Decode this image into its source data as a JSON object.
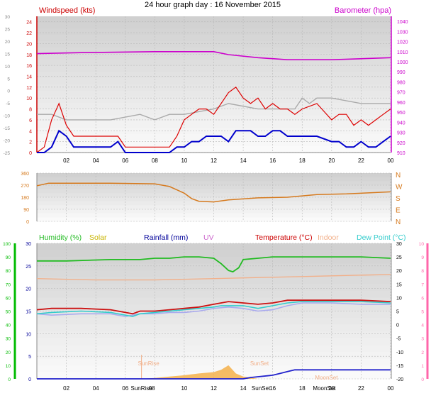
{
  "title": "24 hour graph day : 16 November 2015",
  "colors": {
    "wind": "#dd0000",
    "gust_grey": "#aaaaaa",
    "baro": "#cc00cc",
    "dir": "#d67a1e",
    "humidity": "#22bb22",
    "solar": "#c8b400",
    "rain": "#000099",
    "uv": "#cc66cc",
    "temp": "#cc1111",
    "indoor": "#f2b08a",
    "dew": "#33cccc",
    "apparent": "#aaaaee",
    "axis_green": "#00bb00",
    "axis_pink": "#ff66aa"
  },
  "chart_data": [
    {
      "type": "line",
      "name": "wind-panel",
      "left_label": "Windspeed (kts)",
      "right_label": "Barometer (hpa)",
      "x_ticks": [
        "02",
        "04",
        "06",
        "08",
        "10",
        "12",
        "14",
        "16",
        "18",
        "20",
        "22",
        "00"
      ],
      "x_range": [
        0,
        24
      ],
      "y_left_outer_ticks": [
        "30",
        "25",
        "20",
        "15",
        "10",
        "5",
        "0",
        "-5",
        "-10",
        "-15",
        "-20",
        "-25"
      ],
      "y_left_ticks": [
        "24",
        "22",
        "20",
        "18",
        "16",
        "14",
        "12",
        "10",
        "8",
        "6",
        "4",
        "2",
        "0"
      ],
      "y_left_range": [
        0,
        25
      ],
      "y_right_ticks": [
        "1040",
        "1030",
        "1020",
        "1010",
        "1000",
        "990",
        "980",
        "970",
        "960",
        "950",
        "940",
        "930",
        "920",
        "910"
      ],
      "y_right_range": [
        910,
        1045
      ],
      "barometer": {
        "x": [
          0,
          3,
          8,
          12,
          13,
          15,
          16,
          17,
          20,
          24
        ],
        "y": [
          1008,
          1009,
          1010,
          1010,
          1007,
          1004,
          1003,
          1002,
          1002,
          1004
        ]
      },
      "grey_line": {
        "x": [
          0,
          1,
          2,
          5,
          7,
          8,
          9,
          10,
          12,
          13,
          15,
          17,
          17.5,
          18,
          18.5,
          19,
          20,
          22,
          24
        ],
        "y": [
          7,
          7,
          6,
          6,
          7,
          6,
          7,
          7,
          8,
          9,
          8,
          8,
          8,
          10,
          9,
          10,
          10,
          9,
          9
        ]
      },
      "wind_avg": {
        "x": [
          0,
          0.5,
          1,
          1.5,
          2,
          2.5,
          3,
          4,
          5,
          5.5,
          6,
          6.5,
          7,
          8,
          9,
          9.5,
          10,
          10.5,
          11,
          11.5,
          12,
          12.5,
          13,
          13.5,
          14,
          14.5,
          15,
          15.5,
          16,
          16.5,
          17,
          17.5,
          18,
          19,
          20,
          20.5,
          21,
          21.5,
          22,
          22.5,
          23,
          23.5,
          24
        ],
        "y": [
          0,
          0,
          1,
          4,
          3,
          1,
          1,
          1,
          1,
          2,
          0,
          0,
          0,
          0,
          0,
          1,
          1,
          2,
          2,
          3,
          3,
          3,
          2,
          4,
          4,
          4,
          3,
          3,
          4,
          4,
          3,
          3,
          3,
          3,
          2,
          2,
          1,
          1,
          2,
          1,
          1,
          2,
          3
        ]
      },
      "wind_gust": {
        "x": [
          0,
          0.5,
          1,
          1.5,
          2,
          2.5,
          3,
          4,
          5,
          5.5,
          6,
          6.5,
          7,
          8,
          9,
          9.5,
          10,
          10.5,
          11,
          11.5,
          12,
          12.5,
          13,
          13.5,
          14,
          14.5,
          15,
          15.5,
          16,
          16.5,
          17,
          17.5,
          18,
          19,
          20,
          20.5,
          21,
          21.5,
          22,
          22.5,
          23,
          23.5,
          24
        ],
        "y": [
          0,
          1,
          6,
          9,
          5,
          3,
          3,
          3,
          3,
          3,
          1,
          1,
          1,
          1,
          1,
          3,
          6,
          7,
          8,
          8,
          7,
          9,
          11,
          12,
          10,
          9,
          10,
          8,
          9,
          8,
          8,
          7,
          8,
          9,
          6,
          7,
          7,
          5,
          6,
          5,
          6,
          7,
          8
        ]
      }
    },
    {
      "type": "line",
      "name": "direction-panel",
      "y_left_ticks": [
        "360",
        "270",
        "180",
        "90",
        "0"
      ],
      "y_right_ticks": [
        "N",
        "W",
        "S",
        "E",
        "N"
      ],
      "y_range": [
        0,
        360
      ],
      "direction": {
        "x": [
          0,
          0.8,
          2,
          5,
          8,
          9,
          10,
          10.5,
          11,
          12,
          13,
          15,
          17,
          19,
          21,
          23,
          24
        ],
        "y": [
          265,
          285,
          285,
          285,
          280,
          260,
          210,
          170,
          150,
          145,
          160,
          175,
          180,
          200,
          205,
          215,
          220
        ]
      }
    },
    {
      "type": "line",
      "name": "temperature-panel",
      "legend": [
        "Humidity (%)",
        "Solar",
        "Rainfall (mm)",
        "UV",
        "Temperature (°C)",
        "Indoor",
        "Dew Point (°C)"
      ],
      "x_ticks": [
        "02",
        "04",
        "06",
        "SunRise",
        "08",
        "10",
        "12",
        "14",
        "SunSet",
        "16",
        "18",
        "MoonSet",
        "20",
        "22",
        "00"
      ],
      "y_hum_ticks": [
        "100",
        "90",
        "80",
        "70",
        "60",
        "50",
        "40",
        "30",
        "20",
        "10",
        "0"
      ],
      "y_rain_ticks": [
        "30",
        "25",
        "20",
        "15",
        "10",
        "5",
        "0"
      ],
      "y_temp_ticks": [
        "30",
        "25",
        "20",
        "15",
        "10",
        "5",
        "0",
        "-5",
        "-10",
        "-15",
        "-20"
      ],
      "y_uv_ticks": [
        "10",
        "9",
        "8",
        "7",
        "6",
        "5",
        "4",
        "3",
        "2",
        "1",
        "0"
      ],
      "annotations": [
        "SunRise",
        "SunSet",
        "MoonSet"
      ],
      "humidity": {
        "x": [
          0,
          2,
          5,
          7,
          8,
          9,
          10,
          11,
          12,
          12.5,
          13,
          13.3,
          13.7,
          14,
          15,
          16,
          17,
          18,
          20,
          22,
          24
        ],
        "y": [
          87,
          87,
          88,
          88,
          89,
          89,
          90,
          90,
          89,
          85,
          80,
          79,
          82,
          88,
          89,
          90,
          90,
          90,
          90,
          90,
          89
        ]
      },
      "indoor": {
        "x": [
          0,
          4,
          8,
          12,
          16,
          20,
          24
        ],
        "y": [
          17,
          16.5,
          16.5,
          17,
          17.5,
          18,
          18.5
        ]
      },
      "temperature": {
        "x": [
          0,
          1,
          3,
          5,
          6,
          6.5,
          7,
          8,
          9,
          10,
          11,
          12,
          12.5,
          13,
          14,
          15,
          16,
          17,
          18,
          20,
          22,
          24
        ],
        "y": [
          5.5,
          6,
          6,
          5.5,
          4.5,
          4,
          5,
          5,
          5.5,
          6,
          6.5,
          7.5,
          8,
          8.5,
          8,
          7.5,
          8,
          9,
          9,
          9,
          9,
          8.5
        ]
      },
      "dew_point": {
        "x": [
          0,
          1,
          3,
          5,
          6,
          6.5,
          7,
          8,
          9,
          10,
          11,
          12,
          12.5,
          13,
          14,
          15,
          16,
          17,
          18,
          20,
          22,
          24
        ],
        "y": [
          4,
          4.5,
          5,
          4.5,
          3.5,
          3,
          4,
          4.5,
          5,
          5.5,
          6,
          6.5,
          7,
          7,
          7,
          6,
          7,
          8,
          8.5,
          8.5,
          8.5,
          8
        ]
      },
      "apparent": {
        "x": [
          0,
          1,
          3,
          5,
          6,
          7,
          8,
          9,
          10,
          11,
          12,
          13,
          14,
          15,
          16,
          17,
          18,
          20,
          22,
          24
        ],
        "y": [
          4,
          3.5,
          4,
          4,
          3,
          4,
          4,
          4.5,
          4.5,
          5,
          6,
          6.5,
          6,
          5,
          5.5,
          7,
          8,
          8,
          7.5,
          7.5
        ]
      },
      "rainfall": {
        "x": [
          0,
          14,
          14.5,
          16,
          16.5,
          17,
          17.5,
          24
        ],
        "y": [
          0,
          0,
          0.3,
          0.8,
          1.2,
          1.6,
          2.0,
          2.0
        ]
      },
      "solar": {
        "x": [
          7,
          8,
          9,
          10,
          11,
          12,
          12.5,
          13,
          13.5,
          14,
          15
        ],
        "y": [
          0,
          0.2,
          0.5,
          0.8,
          1.2,
          1.5,
          2.0,
          3.0,
          1.2,
          0.5,
          0
        ]
      }
    }
  ]
}
